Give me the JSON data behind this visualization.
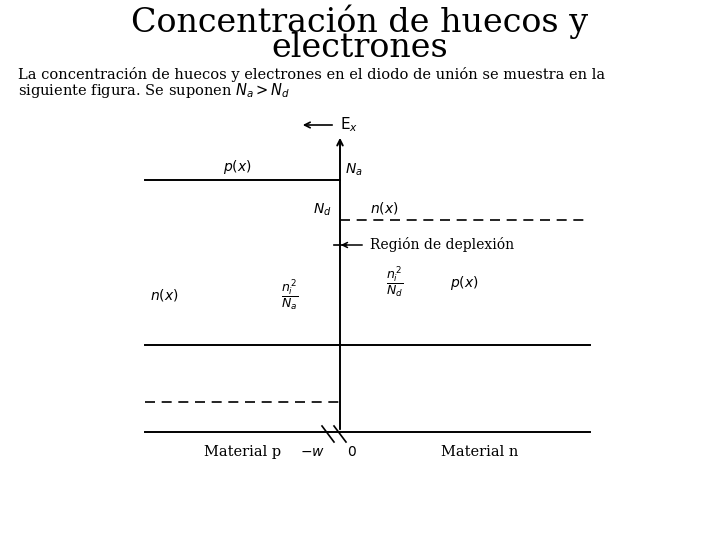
{
  "title_line1": "Concentración de huecos y",
  "title_line2": "electrones",
  "title_fontsize": 24,
  "body_text_1": "La concentración de huecos y electrones en el diodo de unión se muestra en la",
  "body_text_2": "siguiente figura. Se suponen ",
  "body_math": "$N_a>N_d$",
  "body_fontsize": 10.5,
  "background_color": "#ffffff",
  "fig_width": 7.2,
  "fig_height": 5.4,
  "dpi": 100
}
